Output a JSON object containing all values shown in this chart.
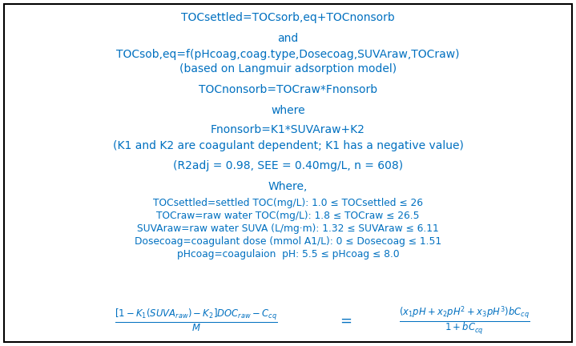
{
  "bg_color": "#ffffff",
  "border_color": "#000000",
  "text_color": "#0070c0",
  "line1": "TOCsettled=TOCsorb,eq+TOCnonsorb",
  "line2": "and",
  "line3": "TOCsob,eq=f(pHcoag,coag.type,Dosecoag,SUVAraw,TOCraw)",
  "line4": "(based on Langmuir adsorption model)",
  "line5": "TOCnonsorb=TOCraw*Fnonsorb",
  "line6": "where",
  "line7": "Fnonsorb=K1*SUVAraw+K2",
  "line8": "(K1 and K2 are coagulant dependent; K1 has a negative value)",
  "line9": "(R2adj = 0.98, SEE = 0.40mg/L, n = 608)",
  "line10": "Where,",
  "line11": "TOCsettled=settled TOC(mg/L): 1.0 ≤ TOCsettled ≤ 26",
  "line12": "TOCraw=raw water TOC(mg/L): 1.8 ≤ TOCraw ≤ 26.5",
  "line13": "SUVAraw=raw water SUVA (L/mg·m): 1.32 ≤ SUVAraw ≤ 6.11",
  "line14": "Dosecoag=coagulant dose (mmol A1/L): 0 ≤ Dosecoag ≤ 1.51",
  "line15": "pHcoag=coagulaion  pH: 5.5 ≤ pHcoag ≤ 8.0",
  "figsize": [
    7.19,
    4.32
  ],
  "dpi": 100
}
